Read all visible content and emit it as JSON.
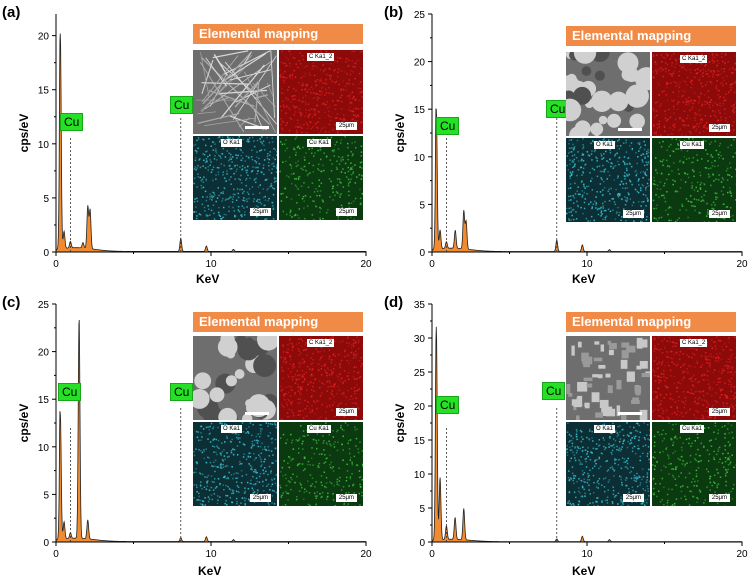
{
  "colors": {
    "fill": "#f28b30",
    "mapping_header": "#ef8a47",
    "cu_label": "#26e026",
    "c_map": "#c81818",
    "o_map": "#2aa8b8",
    "cu_map": "#36a836"
  },
  "common": {
    "xlabel": "KeV",
    "ylabel": "cps/eV",
    "mapping_title": "Elemental mapping",
    "cu_label": "Cu",
    "map_c": "C Ka1_2",
    "map_o": "O Ka1",
    "map_cu": "Cu Ka1",
    "scale": "25μm"
  },
  "chart_data": [
    {
      "panel": "(a)",
      "type": "area",
      "xlabel": "KeV",
      "ylabel": "cps/eV",
      "xlim": [
        0,
        20
      ],
      "ylim": [
        0,
        22
      ],
      "yticks": [
        0,
        5,
        10,
        15,
        20
      ],
      "xticks": [
        0,
        10,
        20
      ],
      "peaks": [
        [
          0.28,
          20.0
        ],
        [
          0.52,
          1.6
        ],
        [
          0.93,
          0.6
        ],
        [
          1.74,
          0.5
        ],
        [
          2.05,
          3.9
        ],
        [
          2.2,
          3.6
        ],
        [
          8.05,
          1.2
        ],
        [
          9.7,
          0.5
        ],
        [
          11.45,
          0.2
        ]
      ],
      "annotations": [
        {
          "text": "Cu",
          "x": 0.93
        },
        {
          "text": "Cu",
          "x": 8.05
        }
      ]
    },
    {
      "panel": "(b)",
      "type": "area",
      "xlabel": "KeV",
      "ylabel": "cps/eV",
      "xlim": [
        0,
        20
      ],
      "ylim": [
        0,
        25
      ],
      "yticks": [
        0,
        5,
        10,
        15,
        20,
        25
      ],
      "xticks": [
        0,
        10,
        20
      ],
      "peaks": [
        [
          0.28,
          14.8
        ],
        [
          0.52,
          2.0
        ],
        [
          0.93,
          0.7
        ],
        [
          1.5,
          1.9
        ],
        [
          2.05,
          4.0
        ],
        [
          2.2,
          2.9
        ],
        [
          8.05,
          1.2
        ],
        [
          9.7,
          0.7
        ],
        [
          11.45,
          0.2
        ]
      ],
      "annotations": [
        {
          "text": "Cu",
          "x": 0.93
        },
        {
          "text": "Cu",
          "x": 8.05
        }
      ]
    },
    {
      "panel": "(c)",
      "type": "area",
      "xlabel": "KeV",
      "ylabel": "cps/eV",
      "xlim": [
        0,
        20
      ],
      "ylim": [
        0,
        25
      ],
      "yticks": [
        0,
        5,
        10,
        15,
        20,
        25
      ],
      "xticks": [
        0,
        10,
        20
      ],
      "peaks": [
        [
          0.28,
          13.3
        ],
        [
          0.52,
          1.8
        ],
        [
          0.93,
          0.6
        ],
        [
          1.49,
          23.3
        ],
        [
          2.05,
          2.0
        ],
        [
          8.05,
          0.4
        ],
        [
          9.7,
          0.5
        ],
        [
          11.45,
          0.2
        ]
      ],
      "annotations": [
        {
          "text": "Cu",
          "x": 0.93
        },
        {
          "text": "Cu",
          "x": 8.05
        }
      ]
    },
    {
      "panel": "(d)",
      "type": "area",
      "xlabel": "KeV",
      "ylabel": "cps/eV",
      "xlim": [
        0,
        20
      ],
      "ylim": [
        0,
        35
      ],
      "yticks": [
        0,
        5,
        10,
        15,
        20,
        25,
        30,
        35
      ],
      "xticks": [
        0,
        10,
        20
      ],
      "peaks": [
        [
          0.28,
          31.5
        ],
        [
          0.52,
          9.2
        ],
        [
          0.93,
          2.0
        ],
        [
          1.49,
          3.2
        ],
        [
          2.05,
          4.6
        ],
        [
          8.05,
          0.4
        ],
        [
          9.7,
          0.8
        ],
        [
          11.45,
          0.3
        ]
      ],
      "annotations": [
        {
          "text": "Cu",
          "x": 0.93
        },
        {
          "text": "Cu",
          "x": 8.05
        }
      ]
    }
  ]
}
